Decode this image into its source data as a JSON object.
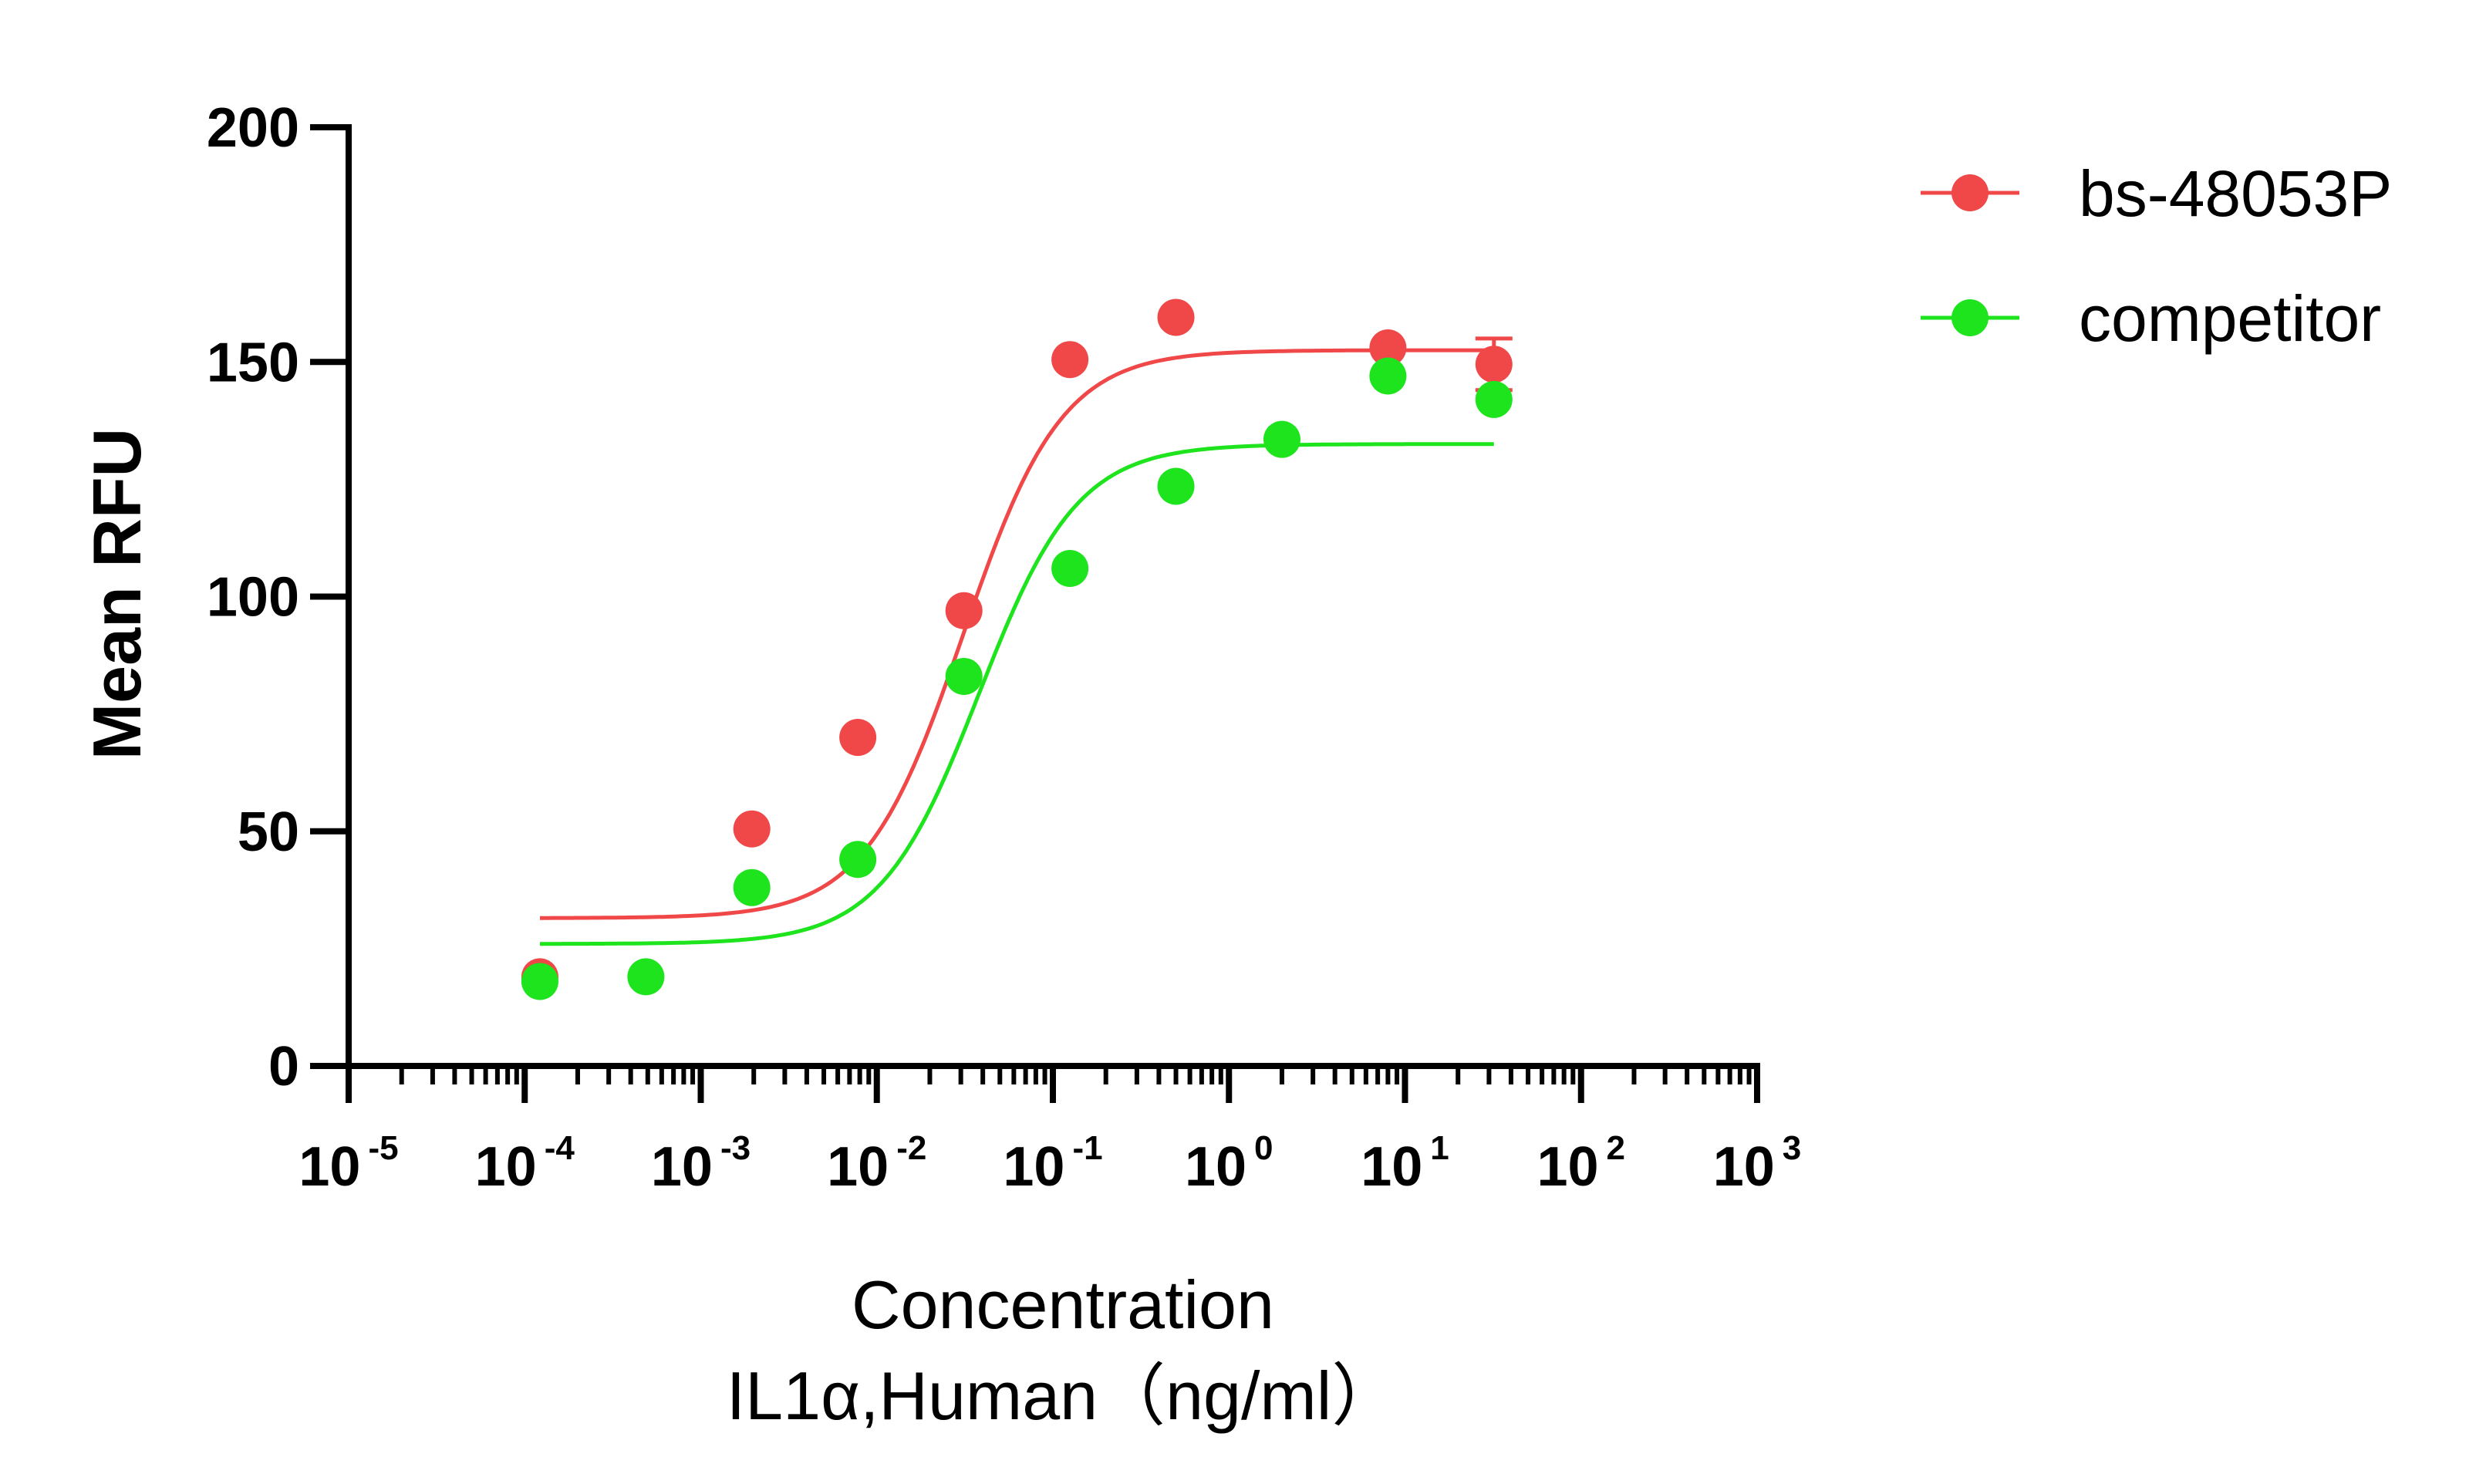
{
  "chart_data": {
    "type": "scatter",
    "ylabel": "Mean RFU",
    "xlabel_line1": "Concentration",
    "xlabel_line2": "IL1α,Human（ng/ml）",
    "x_scale": "log10",
    "xlim": [
      1e-05,
      1000
    ],
    "ylim": [
      0,
      200
    ],
    "y_ticks": [
      0,
      50,
      100,
      150,
      200
    ],
    "x_ticks": [
      {
        "base": "10",
        "exp": "-5",
        "value": 1e-05
      },
      {
        "base": "10",
        "exp": "-4",
        "value": 0.0001
      },
      {
        "base": "10",
        "exp": "-3",
        "value": 0.001
      },
      {
        "base": "10",
        "exp": "-2",
        "value": 0.01
      },
      {
        "base": "10",
        "exp": "-1",
        "value": 0.1
      },
      {
        "base": "10",
        "exp": "0",
        "value": 1
      },
      {
        "base": "10",
        "exp": "1",
        "value": 10
      },
      {
        "base": "10",
        "exp": "2",
        "value": 100
      },
      {
        "base": "10",
        "exp": "3",
        "value": 1000
      }
    ],
    "legend_position": "top-right",
    "grid": false,
    "series": [
      {
        "name": "bs-48053P",
        "color": "#f04848",
        "points": [
          {
            "x": 0.000122,
            "y": 19
          },
          {
            "x": 0.00195,
            "y": 50.5
          },
          {
            "x": 0.0078,
            "y": 70
          },
          {
            "x": 0.03125,
            "y": 97
          },
          {
            "x": 0.125,
            "y": 150.5
          },
          {
            "x": 0.5,
            "y": 159.5
          },
          {
            "x": 8,
            "y": 153
          },
          {
            "x": 32,
            "y": 149.5,
            "err": 5.5
          }
        ],
        "fit": {
          "bottom": 31.5,
          "top": 152.5,
          "ec50": 0.031,
          "hill": 1.55,
          "x_range": [
            0.000122,
            32
          ]
        }
      },
      {
        "name": "competitor",
        "color": "#1de41d",
        "points": [
          {
            "x": 0.000122,
            "y": 18
          },
          {
            "x": 0.000488,
            "y": 19
          },
          {
            "x": 0.00195,
            "y": 38
          },
          {
            "x": 0.0078,
            "y": 44
          },
          {
            "x": 0.03125,
            "y": 83
          },
          {
            "x": 0.125,
            "y": 106
          },
          {
            "x": 0.5,
            "y": 123.5
          },
          {
            "x": 2,
            "y": 133.5
          },
          {
            "x": 8,
            "y": 147
          },
          {
            "x": 32,
            "y": 142
          }
        ],
        "fit": {
          "bottom": 26,
          "top": 132.5,
          "ec50": 0.038,
          "hill": 1.55,
          "x_range": [
            0.000122,
            32
          ]
        }
      }
    ]
  }
}
